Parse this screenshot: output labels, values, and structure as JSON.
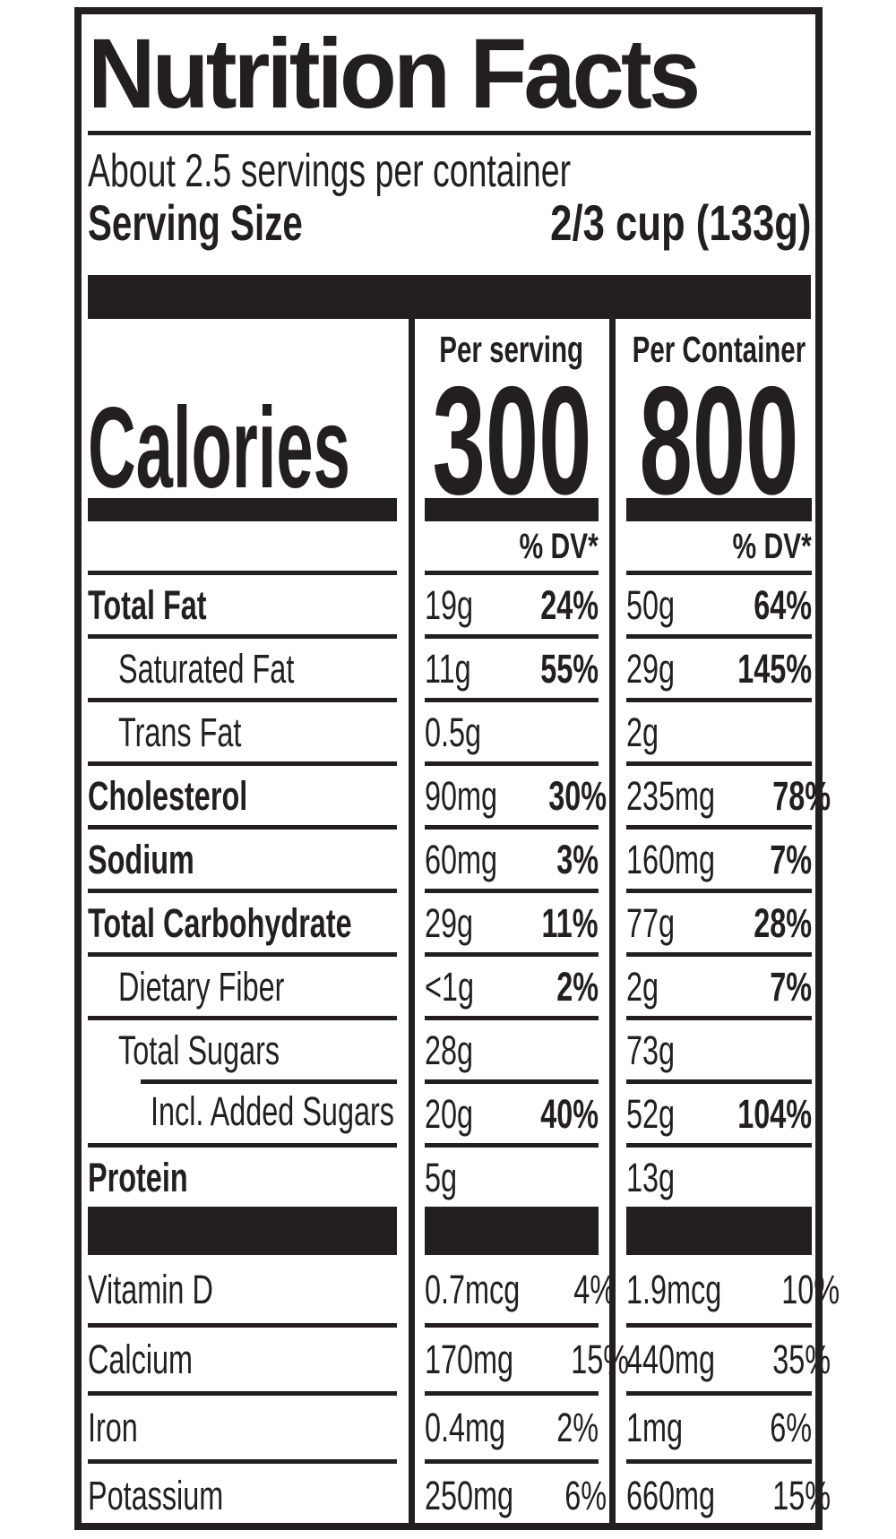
{
  "label": {
    "title": "Nutrition Facts",
    "servings_per_container": "About 2.5 servings per container",
    "serving_size_label": "Serving Size",
    "serving_size_value": "2/3 cup (133g)",
    "calories": {
      "label": "Calories",
      "columns": [
        {
          "header": "Per serving",
          "value": "300"
        },
        {
          "header": "Per Container",
          "value": "800"
        }
      ]
    },
    "dv_header": "% DV*",
    "nutrients": [
      {
        "name": "Total Fat",
        "bold": true,
        "indent": 0,
        "serving_amount": "19g",
        "serving_dv": "24%",
        "container_amount": "50g",
        "container_dv": "64%"
      },
      {
        "name": "Saturated Fat",
        "bold": false,
        "indent": 1,
        "serving_amount": "11g",
        "serving_dv": "55%",
        "container_amount": "29g",
        "container_dv": "145%"
      },
      {
        "name": "Trans Fat",
        "bold": false,
        "indent": 1,
        "serving_amount": "0.5g",
        "serving_dv": "",
        "container_amount": "2g",
        "container_dv": ""
      },
      {
        "name": "Cholesterol",
        "bold": true,
        "indent": 0,
        "serving_amount": "90mg",
        "serving_dv": "30%",
        "container_amount": "235mg",
        "container_dv": "78%"
      },
      {
        "name": "Sodium",
        "bold": true,
        "indent": 0,
        "serving_amount": "60mg",
        "serving_dv": "3%",
        "container_amount": "160mg",
        "container_dv": "7%"
      },
      {
        "name": "Total Carbohydrate",
        "bold": true,
        "indent": 0,
        "serving_amount": "29g",
        "serving_dv": "11%",
        "container_amount": "77g",
        "container_dv": "28%"
      },
      {
        "name": "Dietary Fiber",
        "bold": false,
        "indent": 1,
        "serving_amount": "<1g",
        "serving_dv": "2%",
        "container_amount": "2g",
        "container_dv": "7%"
      },
      {
        "name": "Total Sugars",
        "bold": false,
        "indent": 1,
        "serving_amount": "28g",
        "serving_dv": "",
        "container_amount": "73g",
        "container_dv": ""
      },
      {
        "name": "Incl. Added Sugars",
        "bold": false,
        "indent": 2,
        "serving_amount": "20g",
        "serving_dv": "40%",
        "container_amount": "52g",
        "container_dv": "104%"
      },
      {
        "name": "Protein",
        "bold": true,
        "indent": 0,
        "serving_amount": "5g",
        "serving_dv": "",
        "container_amount": "13g",
        "container_dv": ""
      }
    ],
    "vitamins": [
      {
        "name": "Vitamin D",
        "serving_amount": "0.7mcg",
        "serving_dv": "4%",
        "container_amount": "1.9mcg",
        "container_dv": "10%"
      },
      {
        "name": "Calcium",
        "serving_amount": "170mg",
        "serving_dv": "15%",
        "container_amount": "440mg",
        "container_dv": "35%"
      },
      {
        "name": "Iron",
        "serving_amount": "0.4mg",
        "serving_dv": "2%",
        "container_amount": "1mg",
        "container_dv": "6%"
      },
      {
        "name": "Potassium",
        "serving_amount": "250mg",
        "serving_dv": "6%",
        "container_amount": "660mg",
        "container_dv": "15%"
      }
    ],
    "colors": {
      "ink": "#231f20",
      "background": "#ffffff"
    }
  }
}
